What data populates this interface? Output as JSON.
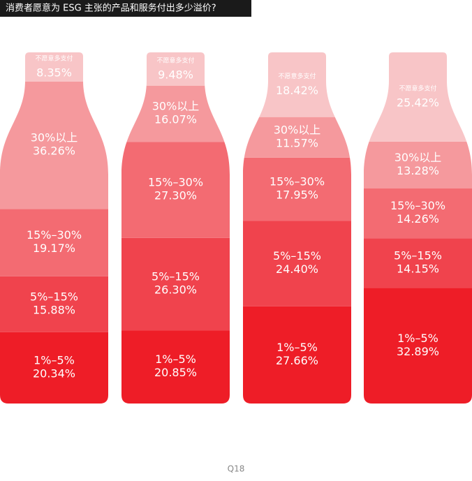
{
  "chart_data": {
    "type": "bar",
    "stacked": true,
    "title": "消费者愿意为 ESG 主张的产品和服务付出多少溢价?",
    "footer": "Q18",
    "categories": [
      null,
      null,
      null,
      null
    ],
    "series": [
      {
        "name": "1%–5%",
        "color": "#ee1d27",
        "values": [
          20.34,
          20.85,
          27.66,
          32.89
        ],
        "value_labels": [
          "20.34%",
          "20.85%",
          "27.66%",
          "32.89%"
        ]
      },
      {
        "name": "5%–15%",
        "color": "#f0434d",
        "values": [
          15.88,
          26.3,
          24.4,
          14.15
        ],
        "value_labels": [
          "15.88%",
          "26.30%",
          "24.40%",
          "14.15%"
        ]
      },
      {
        "name": "15%–30%",
        "color": "#f36b72",
        "values": [
          19.17,
          27.3,
          17.95,
          14.26
        ],
        "value_labels": [
          "19.17%",
          "27.30%",
          "17.95%",
          "14.26%"
        ]
      },
      {
        "name": "30%以上",
        "color": "#f5999d",
        "values": [
          36.26,
          16.07,
          11.57,
          13.28
        ],
        "value_labels": [
          "36.26%",
          "16.07%",
          "11.57%",
          "13.28%"
        ]
      },
      {
        "name": "不愿意多支付",
        "color": "#f8c5c7",
        "values": [
          8.35,
          9.48,
          18.42,
          25.42
        ],
        "value_labels": [
          "8.35%",
          "9.48%",
          "18.42%",
          "25.42%"
        ]
      }
    ]
  }
}
